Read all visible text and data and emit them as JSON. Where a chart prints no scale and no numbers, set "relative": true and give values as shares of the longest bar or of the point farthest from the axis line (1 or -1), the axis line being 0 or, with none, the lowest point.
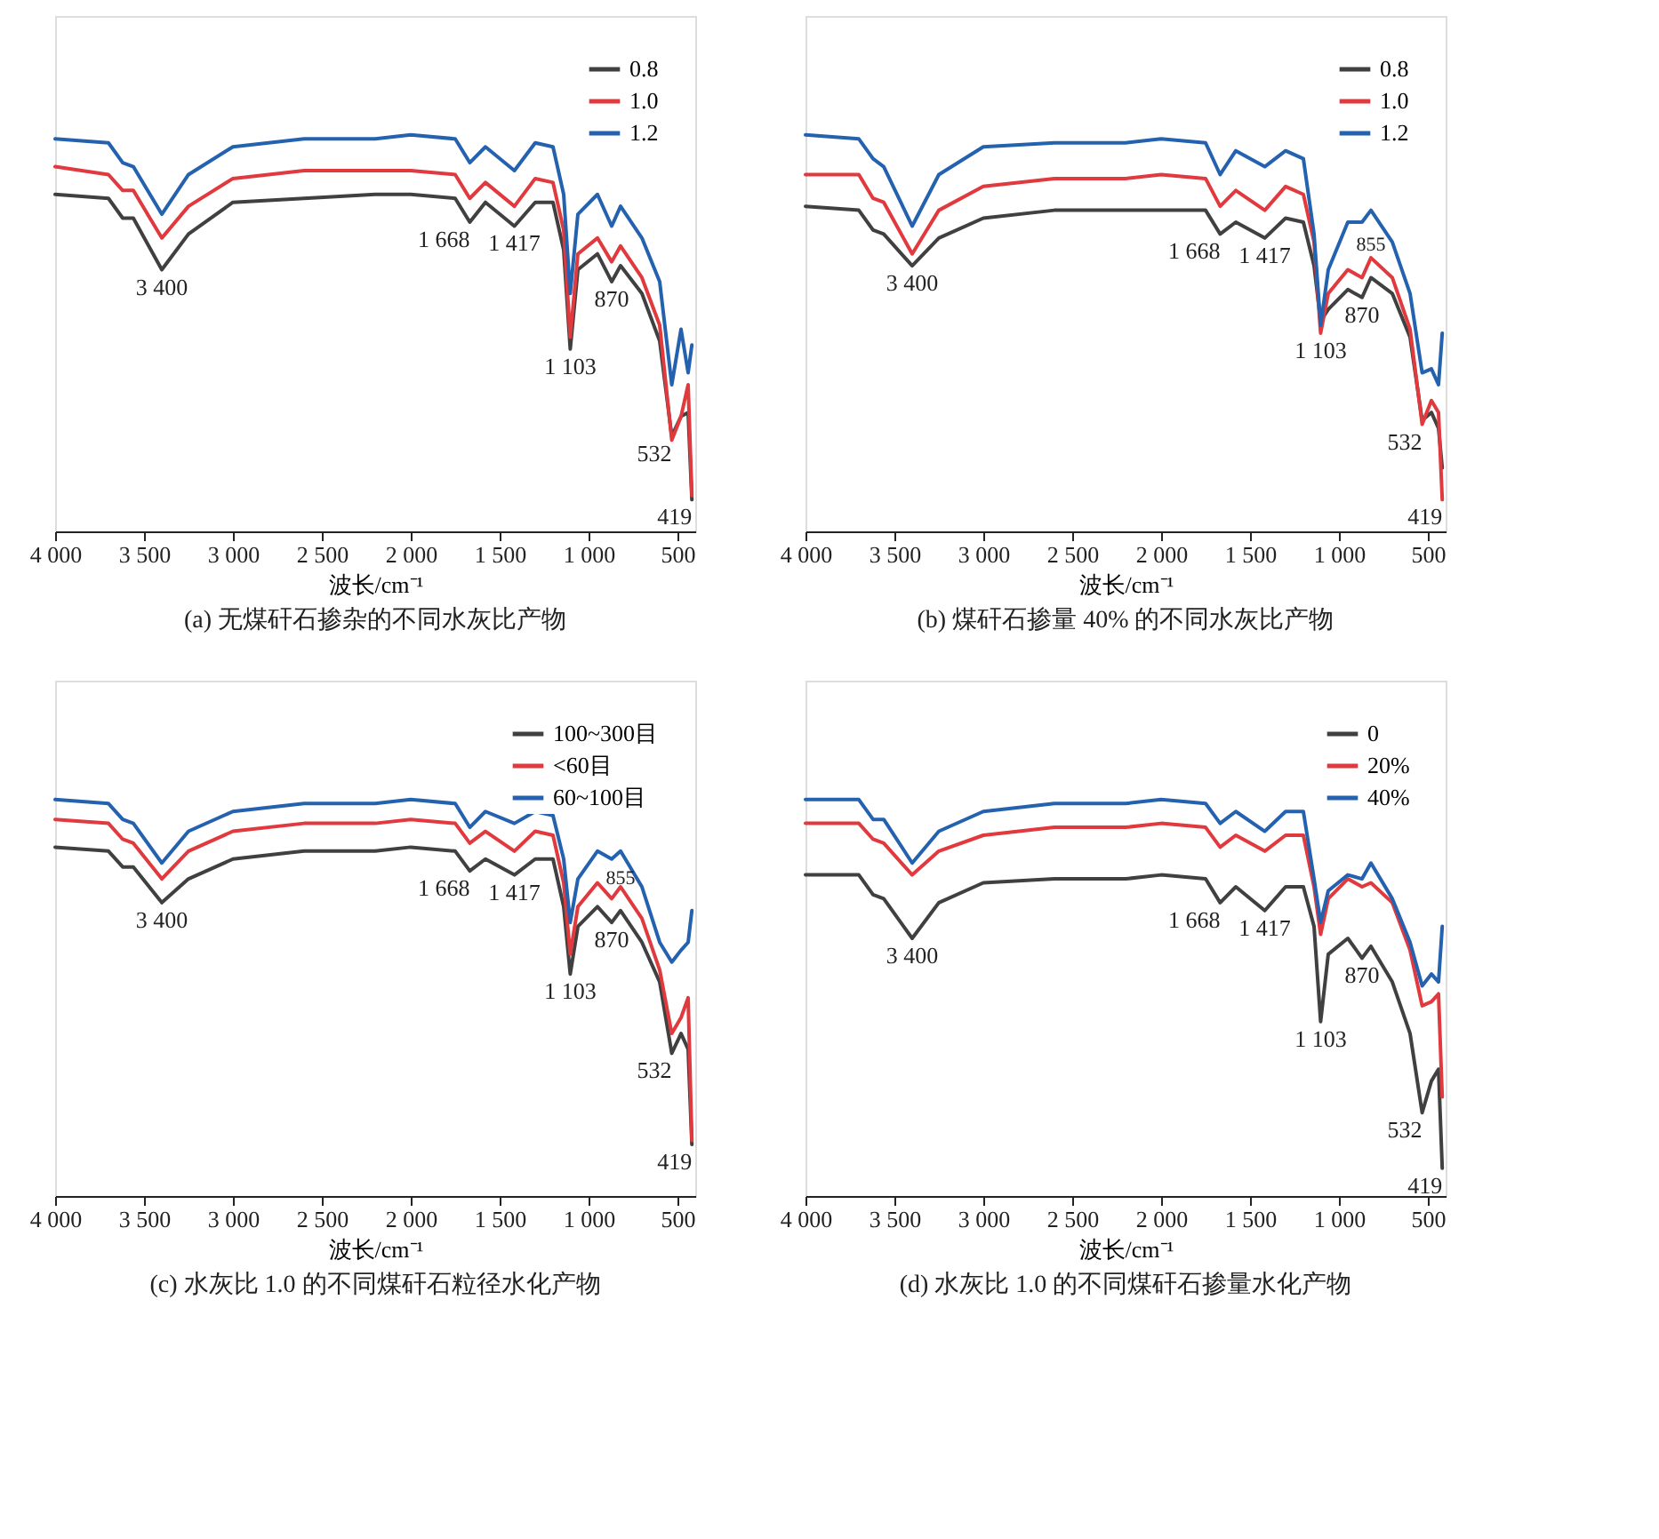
{
  "chart_data": [
    {
      "type": "line",
      "relative": true,
      "title": "(a) 无煤矸石掺杂的不同水灰比产物",
      "xlabel": "波长/cm⁻¹",
      "legend": "top right",
      "line_style": "solid",
      "xlim": [
        4000,
        400
      ],
      "xticks": [
        {
          "value": 4000,
          "label": "4 000"
        },
        {
          "value": 3500,
          "label": "3 500"
        },
        {
          "value": 3000,
          "label": "3 000"
        },
        {
          "value": 2500,
          "label": "2 500"
        },
        {
          "value": 2000,
          "label": "2 000"
        },
        {
          "value": 1500,
          "label": "1 500"
        },
        {
          "value": 1000,
          "label": "1 000"
        },
        {
          "value": 500,
          "label": "500"
        }
      ],
      "x": [
        4000,
        3700,
        3620,
        3560,
        3400,
        3250,
        3000,
        2600,
        2200,
        2000,
        1750,
        1668,
        1580,
        1417,
        1300,
        1200,
        1140,
        1103,
        1060,
        950,
        870,
        820,
        700,
        600,
        532,
        480,
        440,
        419
      ],
      "series": [
        {
          "name": "0.8",
          "color": "#404040",
          "values": [
            0.85,
            0.84,
            0.79,
            0.79,
            0.66,
            0.75,
            0.83,
            0.84,
            0.85,
            0.85,
            0.84,
            0.78,
            0.83,
            0.77,
            0.83,
            0.83,
            0.71,
            0.46,
            0.66,
            0.7,
            0.63,
            0.67,
            0.6,
            0.48,
            0.24,
            0.29,
            0.3,
            0.08
          ]
        },
        {
          "name": "1.0",
          "color": "#e0393e",
          "values": [
            0.92,
            0.9,
            0.86,
            0.86,
            0.74,
            0.82,
            0.89,
            0.91,
            0.91,
            0.91,
            0.9,
            0.84,
            0.88,
            0.82,
            0.89,
            0.88,
            0.76,
            0.49,
            0.7,
            0.74,
            0.68,
            0.72,
            0.64,
            0.52,
            0.23,
            0.29,
            0.37,
            0.09
          ]
        },
        {
          "name": "1.2",
          "color": "#2462b0",
          "values": [
            0.99,
            0.98,
            0.93,
            0.92,
            0.8,
            0.9,
            0.97,
            0.99,
            0.99,
            1,
            0.99,
            0.93,
            0.97,
            0.91,
            0.98,
            0.97,
            0.85,
            0.6,
            0.8,
            0.85,
            0.77,
            0.82,
            0.74,
            0.63,
            0.37,
            0.51,
            0.4,
            0.47
          ]
        }
      ],
      "annotations": [
        {
          "text": "3 400",
          "x": 3400,
          "y": 0.66
        },
        {
          "text": "1 668",
          "x": 1668,
          "y": 0.78
        },
        {
          "text": "1 417",
          "x": 1417,
          "y": 0.77
        },
        {
          "text": "1 103",
          "x": 1103,
          "y": 0.46
        },
        {
          "text": "870",
          "x": 870,
          "y": 0.63
        },
        {
          "text": "532",
          "x": 532,
          "y": 0.24
        },
        {
          "text": "419",
          "x": 419,
          "y": 0.08
        }
      ]
    },
    {
      "type": "line",
      "relative": true,
      "title": "(b) 煤矸石掺量 40% 的不同水灰比产物",
      "xlabel": "波长/cm⁻¹",
      "legend": "top right",
      "line_style": "solid",
      "xlim": [
        4000,
        400
      ],
      "xticks": [
        {
          "value": 4000,
          "label": "4 000"
        },
        {
          "value": 3500,
          "label": "3 500"
        },
        {
          "value": 3000,
          "label": "3 000"
        },
        {
          "value": 2500,
          "label": "2 500"
        },
        {
          "value": 2000,
          "label": "2 000"
        },
        {
          "value": 1500,
          "label": "1 500"
        },
        {
          "value": 1000,
          "label": "1 000"
        },
        {
          "value": 500,
          "label": "500"
        }
      ],
      "x": [
        4000,
        3700,
        3620,
        3560,
        3400,
        3250,
        3000,
        2600,
        2200,
        2000,
        1750,
        1668,
        1580,
        1417,
        1300,
        1200,
        1140,
        1103,
        1060,
        950,
        870,
        820,
        700,
        600,
        532,
        480,
        440,
        419
      ],
      "series": [
        {
          "name": "0.8",
          "color": "#404040",
          "values": [
            0.82,
            0.81,
            0.76,
            0.75,
            0.67,
            0.74,
            0.79,
            0.81,
            0.81,
            0.81,
            0.81,
            0.75,
            0.78,
            0.74,
            0.79,
            0.78,
            0.67,
            0.53,
            0.56,
            0.61,
            0.59,
            0.64,
            0.6,
            0.49,
            0.28,
            0.3,
            0.26,
            0.16
          ]
        },
        {
          "name": "1.0",
          "color": "#e0393e",
          "values": [
            0.9,
            0.9,
            0.84,
            0.83,
            0.7,
            0.81,
            0.87,
            0.89,
            0.89,
            0.9,
            0.89,
            0.82,
            0.86,
            0.81,
            0.87,
            0.85,
            0.73,
            0.5,
            0.6,
            0.66,
            0.64,
            0.69,
            0.64,
            0.51,
            0.27,
            0.33,
            0.3,
            0.08
          ]
        },
        {
          "name": "1.2",
          "color": "#2462b0",
          "values": [
            1,
            0.99,
            0.94,
            0.92,
            0.77,
            0.9,
            0.97,
            0.98,
            0.98,
            0.99,
            0.98,
            0.9,
            0.96,
            0.92,
            0.96,
            0.94,
            0.75,
            0.52,
            0.66,
            0.78,
            0.78,
            0.81,
            0.73,
            0.6,
            0.4,
            0.41,
            0.37,
            0.5
          ]
        }
      ],
      "annotations": [
        {
          "text": "3 400",
          "x": 3400,
          "y": 0.67
        },
        {
          "text": "1 668",
          "x": 1668,
          "y": 0.75
        },
        {
          "text": "1 417",
          "x": 1417,
          "y": 0.74
        },
        {
          "text": "1 103",
          "x": 1103,
          "y": 0.5
        },
        {
          "text": "870",
          "x": 870,
          "y": 0.59
        },
        {
          "text": "855",
          "x": 820,
          "y": 0.64
        },
        {
          "text": "532",
          "x": 532,
          "y": 0.27
        },
        {
          "text": "419",
          "x": 419,
          "y": 0.08
        }
      ]
    },
    {
      "type": "line",
      "relative": true,
      "title": "(c) 水灰比 1.0 的不同煤矸石粒径水化产物",
      "xlabel": "波长/cm⁻¹",
      "legend": "top right",
      "line_style": "solid",
      "xlim": [
        4000,
        400
      ],
      "xticks": [
        {
          "value": 4000,
          "label": "4 000"
        },
        {
          "value": 3500,
          "label": "3 500"
        },
        {
          "value": 3000,
          "label": "3 000"
        },
        {
          "value": 2500,
          "label": "2 500"
        },
        {
          "value": 2000,
          "label": "2 000"
        },
        {
          "value": 1500,
          "label": "1 500"
        },
        {
          "value": 1000,
          "label": "1 000"
        },
        {
          "value": 500,
          "label": "500"
        }
      ],
      "x": [
        4000,
        3700,
        3620,
        3560,
        3400,
        3250,
        3000,
        2600,
        2200,
        2000,
        1750,
        1668,
        1580,
        1417,
        1300,
        1200,
        1140,
        1103,
        1060,
        950,
        870,
        820,
        700,
        600,
        532,
        480,
        440,
        419
      ],
      "series": [
        {
          "name": "100~300目",
          "color": "#404040",
          "values": [
            0.88,
            0.87,
            0.83,
            0.83,
            0.74,
            0.8,
            0.85,
            0.87,
            0.87,
            0.88,
            0.87,
            0.82,
            0.85,
            0.81,
            0.85,
            0.85,
            0.73,
            0.56,
            0.68,
            0.73,
            0.69,
            0.72,
            0.64,
            0.54,
            0.36,
            0.41,
            0.37,
            0.13
          ]
        },
        {
          "name": "<60目",
          "color": "#e0393e",
          "values": [
            0.95,
            0.94,
            0.9,
            0.89,
            0.8,
            0.87,
            0.92,
            0.94,
            0.94,
            0.95,
            0.94,
            0.89,
            0.92,
            0.87,
            0.92,
            0.91,
            0.79,
            0.61,
            0.73,
            0.79,
            0.75,
            0.78,
            0.7,
            0.57,
            0.41,
            0.45,
            0.5,
            0.14
          ]
        },
        {
          "name": "60~100目",
          "color": "#2462b0",
          "values": [
            1,
            0.99,
            0.95,
            0.94,
            0.84,
            0.92,
            0.97,
            0.99,
            0.99,
            1,
            0.99,
            0.93,
            0.97,
            0.94,
            0.97,
            0.96,
            0.85,
            0.69,
            0.8,
            0.87,
            0.85,
            0.87,
            0.78,
            0.64,
            0.59,
            0.62,
            0.64,
            0.72
          ]
        }
      ],
      "annotations": [
        {
          "text": "3 400",
          "x": 3400,
          "y": 0.74
        },
        {
          "text": "1 668",
          "x": 1668,
          "y": 0.82
        },
        {
          "text": "1 417",
          "x": 1417,
          "y": 0.81
        },
        {
          "text": "1 103",
          "x": 1103,
          "y": 0.56
        },
        {
          "text": "870",
          "x": 870,
          "y": 0.69
        },
        {
          "text": "855",
          "x": 820,
          "y": 0.72
        },
        {
          "text": "532",
          "x": 532,
          "y": 0.36
        },
        {
          "text": "419",
          "x": 419,
          "y": 0.13
        }
      ]
    },
    {
      "type": "line",
      "relative": true,
      "title": "(d) 水灰比 1.0 的不同煤矸石掺量水化产物",
      "xlabel": "波长/cm⁻¹",
      "legend": "top right",
      "line_style": "solid",
      "xlim": [
        4000,
        400
      ],
      "xticks": [
        {
          "value": 4000,
          "label": "4 000"
        },
        {
          "value": 3500,
          "label": "3 500"
        },
        {
          "value": 3000,
          "label": "3 000"
        },
        {
          "value": 2500,
          "label": "2 500"
        },
        {
          "value": 2000,
          "label": "2 000"
        },
        {
          "value": 1500,
          "label": "1 500"
        },
        {
          "value": 1000,
          "label": "1 000"
        },
        {
          "value": 500,
          "label": "500"
        }
      ],
      "x": [
        4000,
        3700,
        3620,
        3560,
        3400,
        3250,
        3000,
        2600,
        2200,
        2000,
        1750,
        1668,
        1580,
        1417,
        1300,
        1200,
        1140,
        1103,
        1060,
        950,
        870,
        820,
        700,
        600,
        532,
        480,
        440,
        419
      ],
      "series": [
        {
          "name": "0",
          "color": "#404040",
          "values": [
            0.81,
            0.81,
            0.76,
            0.75,
            0.65,
            0.74,
            0.79,
            0.8,
            0.8,
            0.81,
            0.8,
            0.74,
            0.78,
            0.72,
            0.78,
            0.78,
            0.68,
            0.44,
            0.61,
            0.65,
            0.6,
            0.63,
            0.54,
            0.41,
            0.21,
            0.29,
            0.32,
            0.07
          ]
        },
        {
          "name": "20%",
          "color": "#e0393e",
          "values": [
            0.94,
            0.94,
            0.9,
            0.89,
            0.81,
            0.87,
            0.91,
            0.93,
            0.93,
            0.94,
            0.93,
            0.88,
            0.91,
            0.87,
            0.91,
            0.91,
            0.78,
            0.66,
            0.75,
            0.8,
            0.78,
            0.79,
            0.74,
            0.62,
            0.48,
            0.49,
            0.51,
            0.25
          ]
        },
        {
          "name": "40%",
          "color": "#2462b0",
          "values": [
            1,
            1,
            0.95,
            0.95,
            0.84,
            0.92,
            0.97,
            0.99,
            0.99,
            1,
            0.99,
            0.94,
            0.97,
            0.92,
            0.97,
            0.97,
            0.8,
            0.69,
            0.77,
            0.81,
            0.8,
            0.84,
            0.75,
            0.64,
            0.53,
            0.56,
            0.54,
            0.68
          ]
        }
      ],
      "annotations": [
        {
          "text": "3 400",
          "x": 3400,
          "y": 0.65
        },
        {
          "text": "1 668",
          "x": 1668,
          "y": 0.74
        },
        {
          "text": "1 417",
          "x": 1417,
          "y": 0.72
        },
        {
          "text": "1 103",
          "x": 1103,
          "y": 0.44
        },
        {
          "text": "870",
          "x": 870,
          "y": 0.6
        },
        {
          "text": "532",
          "x": 532,
          "y": 0.21
        },
        {
          "text": "419",
          "x": 419,
          "y": 0.07
        }
      ]
    }
  ]
}
